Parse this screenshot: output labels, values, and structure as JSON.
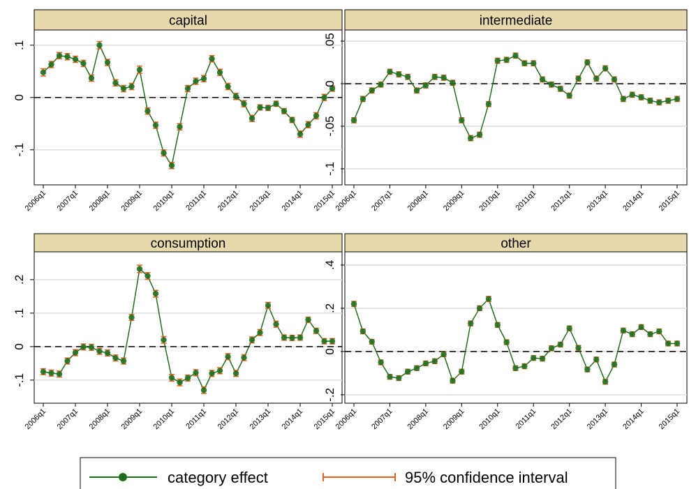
{
  "chart_data": [
    {
      "type": "line",
      "title": "capital",
      "categories": [
        "2006q1",
        null,
        null,
        null,
        "2007q1",
        null,
        null,
        null,
        "2008q1",
        null,
        null,
        null,
        "2009q1",
        null,
        null,
        null,
        "2010q1",
        null,
        null,
        null,
        "2011q1",
        null,
        null,
        null,
        "2012q1",
        null,
        null,
        null,
        "2013q1",
        null,
        null,
        null,
        "2014q1",
        null,
        null,
        null,
        "2015q1"
      ],
      "values": [
        0.048,
        0.063,
        0.08,
        0.078,
        0.073,
        0.065,
        0.037,
        0.1,
        0.067,
        0.028,
        0.017,
        0.021,
        0.053,
        -0.026,
        -0.053,
        -0.106,
        -0.13,
        -0.056,
        0.017,
        0.031,
        0.036,
        0.074,
        0.048,
        0.021,
        0.002,
        -0.012,
        -0.04,
        -0.019,
        -0.02,
        -0.012,
        -0.026,
        -0.043,
        -0.07,
        -0.052,
        -0.035,
        0.0,
        0.017
      ],
      "errors": [
        0.007,
        0.006,
        0.006,
        0.006,
        0.006,
        0.006,
        0.006,
        0.007,
        0.006,
        0.006,
        0.006,
        0.006,
        0.007,
        0.006,
        0.006,
        0.006,
        0.006,
        0.006,
        0.006,
        0.006,
        0.006,
        0.006,
        0.006,
        0.006,
        0.006,
        0.006,
        0.006,
        0.005,
        0.005,
        0.005,
        0.005,
        0.005,
        0.006,
        0.006,
        0.006,
        0.006,
        0.005
      ],
      "ylim": [
        -0.167,
        0.129
      ],
      "yticks": [
        {
          "value": -0.1,
          "label": "-.1"
        },
        0,
        {
          "value": 0.1,
          "label": ".1"
        }
      ],
      "hline": 0,
      "grid": true
    },
    {
      "type": "line",
      "title": "intermediate",
      "categories": [
        "2006q1",
        null,
        null,
        null,
        "2007q1",
        null,
        null,
        null,
        "2008q1",
        null,
        null,
        null,
        "2009q1",
        null,
        null,
        null,
        "2010q1",
        null,
        null,
        null,
        "2011q1",
        null,
        null,
        null,
        "2012q1",
        null,
        null,
        null,
        "2013q1",
        null,
        null,
        null,
        "2014q1",
        null,
        null,
        null,
        "2015q1"
      ],
      "values": [
        -0.043,
        -0.018,
        -0.008,
        -0.001,
        0.014,
        0.011,
        0.008,
        -0.008,
        -0.002,
        0.008,
        0.007,
        0.001,
        -0.043,
        -0.064,
        -0.06,
        -0.024,
        0.027,
        0.028,
        0.033,
        0.024,
        0.024,
        0.005,
        -0.001,
        -0.006,
        -0.014,
        0.006,
        0.025,
        0.006,
        0.018,
        0.005,
        -0.018,
        -0.013,
        -0.016,
        -0.02,
        -0.022,
        -0.02,
        -0.018
      ],
      "errors": [
        0.003,
        0.003,
        0.003,
        0.003,
        0.003,
        0.003,
        0.003,
        0.003,
        0.003,
        0.003,
        0.003,
        0.003,
        0.003,
        0.003,
        0.003,
        0.003,
        0.003,
        0.003,
        0.003,
        0.003,
        0.003,
        0.003,
        0.003,
        0.003,
        0.003,
        0.003,
        0.003,
        0.003,
        0.003,
        0.003,
        0.003,
        0.003,
        0.003,
        0.003,
        0.003,
        0.003,
        0.003
      ],
      "ylim": [
        -0.1189,
        0.0631
      ],
      "yticks": [
        {
          "value": -0.1,
          "label": "-.1"
        },
        {
          "value": -0.05,
          "label": "-.05"
        },
        0,
        {
          "value": 0.05,
          "label": ".05"
        }
      ],
      "hline": 0,
      "grid": true
    },
    {
      "type": "line",
      "title": "consumption",
      "categories": [
        "2006q1",
        null,
        null,
        null,
        "2007q1",
        null,
        null,
        null,
        "2008q1",
        null,
        null,
        null,
        "2009q1",
        null,
        null,
        null,
        "2010q1",
        null,
        null,
        null,
        "2011q1",
        null,
        null,
        null,
        "2012q1",
        null,
        null,
        null,
        "2013q1",
        null,
        null,
        null,
        "2014q1",
        null,
        null,
        null,
        "2015q1"
      ],
      "values": [
        -0.075,
        -0.079,
        -0.082,
        -0.043,
        -0.018,
        -0.001,
        -0.002,
        -0.014,
        -0.019,
        -0.034,
        -0.043,
        0.087,
        0.232,
        0.211,
        0.158,
        0.02,
        -0.093,
        -0.107,
        -0.094,
        -0.078,
        -0.13,
        -0.08,
        -0.072,
        -0.03,
        -0.08,
        -0.033,
        0.02,
        0.042,
        0.123,
        0.067,
        0.027,
        0.026,
        0.027,
        0.08,
        0.047,
        0.016,
        0.016
      ],
      "errors": [
        0.009,
        0.009,
        0.009,
        0.009,
        0.009,
        0.009,
        0.009,
        0.009,
        0.009,
        0.009,
        0.009,
        0.009,
        0.011,
        0.01,
        0.01,
        0.01,
        0.01,
        0.01,
        0.009,
        0.009,
        0.01,
        0.009,
        0.009,
        0.009,
        0.009,
        0.009,
        0.009,
        0.009,
        0.009,
        0.009,
        0.008,
        0.008,
        0.008,
        0.008,
        0.008,
        0.008,
        0.008
      ],
      "ylim": [
        -0.169,
        0.283
      ],
      "yticks": [
        {
          "value": -0.1,
          "label": "-.1"
        },
        0,
        {
          "value": 0.1,
          "label": ".1"
        },
        {
          "value": 0.2,
          "label": ".2"
        }
      ],
      "hline": 0,
      "grid": true
    },
    {
      "type": "line",
      "title": "other",
      "categories": [
        "2006q1",
        null,
        null,
        null,
        "2007q1",
        null,
        null,
        null,
        "2008q1",
        null,
        null,
        null,
        "2009q1",
        null,
        null,
        null,
        "2010q1",
        null,
        null,
        null,
        "2011q1",
        null,
        null,
        null,
        "2012q1",
        null,
        null,
        null,
        "2013q1",
        null,
        null,
        null,
        "2014q1",
        null,
        null,
        null,
        "2015q1"
      ],
      "values": [
        0.22,
        0.093,
        0.045,
        -0.05,
        -0.117,
        -0.123,
        -0.093,
        -0.077,
        -0.055,
        -0.045,
        -0.013,
        -0.135,
        -0.093,
        0.13,
        0.2,
        0.243,
        0.123,
        0.043,
        -0.077,
        -0.068,
        -0.03,
        -0.033,
        0.015,
        0.032,
        0.107,
        0.017,
        -0.083,
        -0.037,
        -0.14,
        -0.06,
        0.097,
        0.08,
        0.113,
        0.08,
        0.093,
        0.037,
        0.037
      ],
      "errors": [
        0.012,
        0.011,
        0.011,
        0.011,
        0.011,
        0.011,
        0.011,
        0.011,
        0.011,
        0.011,
        0.011,
        0.011,
        0.011,
        0.011,
        0.011,
        0.012,
        0.011,
        0.011,
        0.011,
        0.011,
        0.011,
        0.011,
        0.011,
        0.011,
        0.011,
        0.011,
        0.011,
        0.011,
        0.011,
        0.011,
        0.011,
        0.011,
        0.011,
        0.011,
        0.011,
        0.011,
        0.011
      ],
      "ylim": [
        -0.239,
        0.461
      ],
      "yticks": [
        {
          "value": -0.2,
          "label": "-.2"
        },
        0,
        {
          "value": 0.2,
          "label": ".2"
        },
        {
          "value": 0.4,
          "label": ".4"
        }
      ],
      "hline": 0,
      "grid": true
    }
  ],
  "legend": [
    {
      "name": "category effect",
      "color": "#1e6e1e"
    },
    {
      "name": "95% confidence interval",
      "color": "#e8601c"
    }
  ]
}
